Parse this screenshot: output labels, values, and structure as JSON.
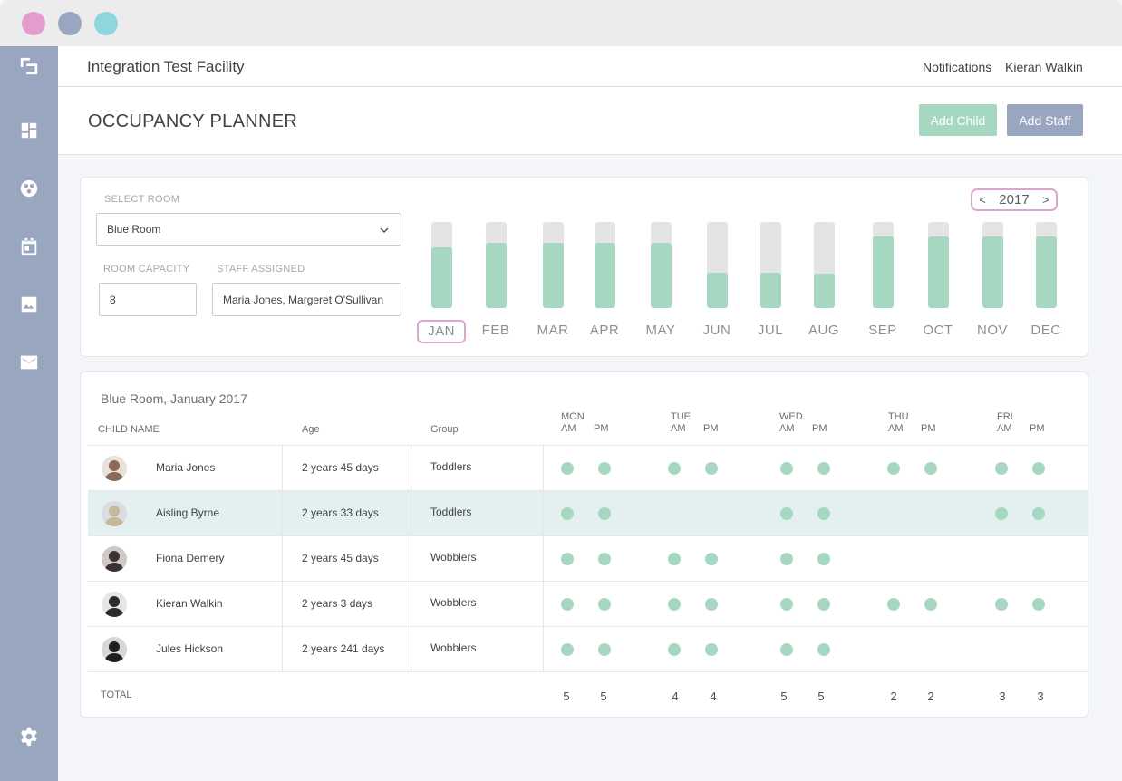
{
  "window": {
    "dot_colors": [
      "#e39ccb",
      "#98a6bf",
      "#8fd5dd"
    ]
  },
  "sidebar": {
    "icons": [
      "logo-icon",
      "dashboard-icon",
      "children-icon",
      "calendar-icon",
      "image-icon",
      "mail-icon",
      "settings-icon"
    ]
  },
  "header": {
    "facility": "Integration Test Facility",
    "notifications": "Notifications",
    "user": "Kieran Walkin"
  },
  "page": {
    "title": "OCCUPANCY PLANNER",
    "add_child": "Add Child",
    "add_staff": "Add Staff"
  },
  "colors": {
    "accent_green": "#a6d8c1",
    "accent_slate": "#98a6bf",
    "highlight_pink": "#d9a8cc"
  },
  "room": {
    "select_label": "SELECT ROOM",
    "selected": "Blue Room",
    "capacity_label": "ROOM CAPACITY",
    "capacity": "8",
    "staff_label": "STAFF ASSIGNED",
    "staff": "Maria Jones, Margeret O'Sullivan"
  },
  "year": {
    "prev": "<",
    "value": "2017",
    "next": ">"
  },
  "occupancy": {
    "selected_month": "JAN",
    "months": [
      {
        "label": "JAN",
        "fill": 0.7
      },
      {
        "label": "FEB",
        "fill": 0.76
      },
      {
        "label": "MAR",
        "fill": 0.76
      },
      {
        "label": "APR",
        "fill": 0.76
      },
      {
        "label": "MAY",
        "fill": 0.76
      },
      {
        "label": "JUN",
        "fill": 0.41
      },
      {
        "label": "JUL",
        "fill": 0.41
      },
      {
        "label": "AUG",
        "fill": 0.4
      },
      {
        "label": "SEP",
        "fill": 0.83
      },
      {
        "label": "OCT",
        "fill": 0.83
      },
      {
        "label": "NOV",
        "fill": 0.83
      },
      {
        "label": "DEC",
        "fill": 0.83
      }
    ]
  },
  "table": {
    "title": "Blue Room, January 2017",
    "columns": {
      "name": "CHILD NAME",
      "age": "Age",
      "group": "Group"
    },
    "days": [
      "MON",
      "TUE",
      "WED",
      "THU",
      "FRI"
    ],
    "am": "AM",
    "pm": "PM",
    "rows": [
      {
        "name": "Maria Jones",
        "age": "2 years 45 days",
        "group": "Toddlers",
        "slots": [
          1,
          1,
          1,
          1,
          1,
          1,
          1,
          1,
          1,
          1
        ],
        "highlight": false
      },
      {
        "name": "Aisling Byrne",
        "age": "2 years 33 days",
        "group": "Toddlers",
        "slots": [
          1,
          1,
          0,
          0,
          1,
          1,
          0,
          0,
          1,
          1
        ],
        "highlight": true
      },
      {
        "name": "Fiona Demery",
        "age": "2 years 45 days",
        "group": "Wobblers",
        "slots": [
          1,
          1,
          1,
          1,
          1,
          1,
          0,
          0,
          0,
          0
        ],
        "highlight": false
      },
      {
        "name": "Kieran Walkin",
        "age": "2 years 3 days",
        "group": "Wobblers",
        "slots": [
          1,
          1,
          1,
          1,
          1,
          1,
          1,
          1,
          1,
          1
        ],
        "highlight": false
      },
      {
        "name": "Jules Hickson",
        "age": "2 years 241 days",
        "group": "Wobblers",
        "slots": [
          1,
          1,
          1,
          1,
          1,
          1,
          0,
          0,
          0,
          0
        ],
        "highlight": false
      }
    ],
    "total_label": "TOTAL",
    "totals": [
      "5",
      "5",
      "4",
      "4",
      "5",
      "5",
      "2",
      "2",
      "3",
      "3"
    ]
  }
}
